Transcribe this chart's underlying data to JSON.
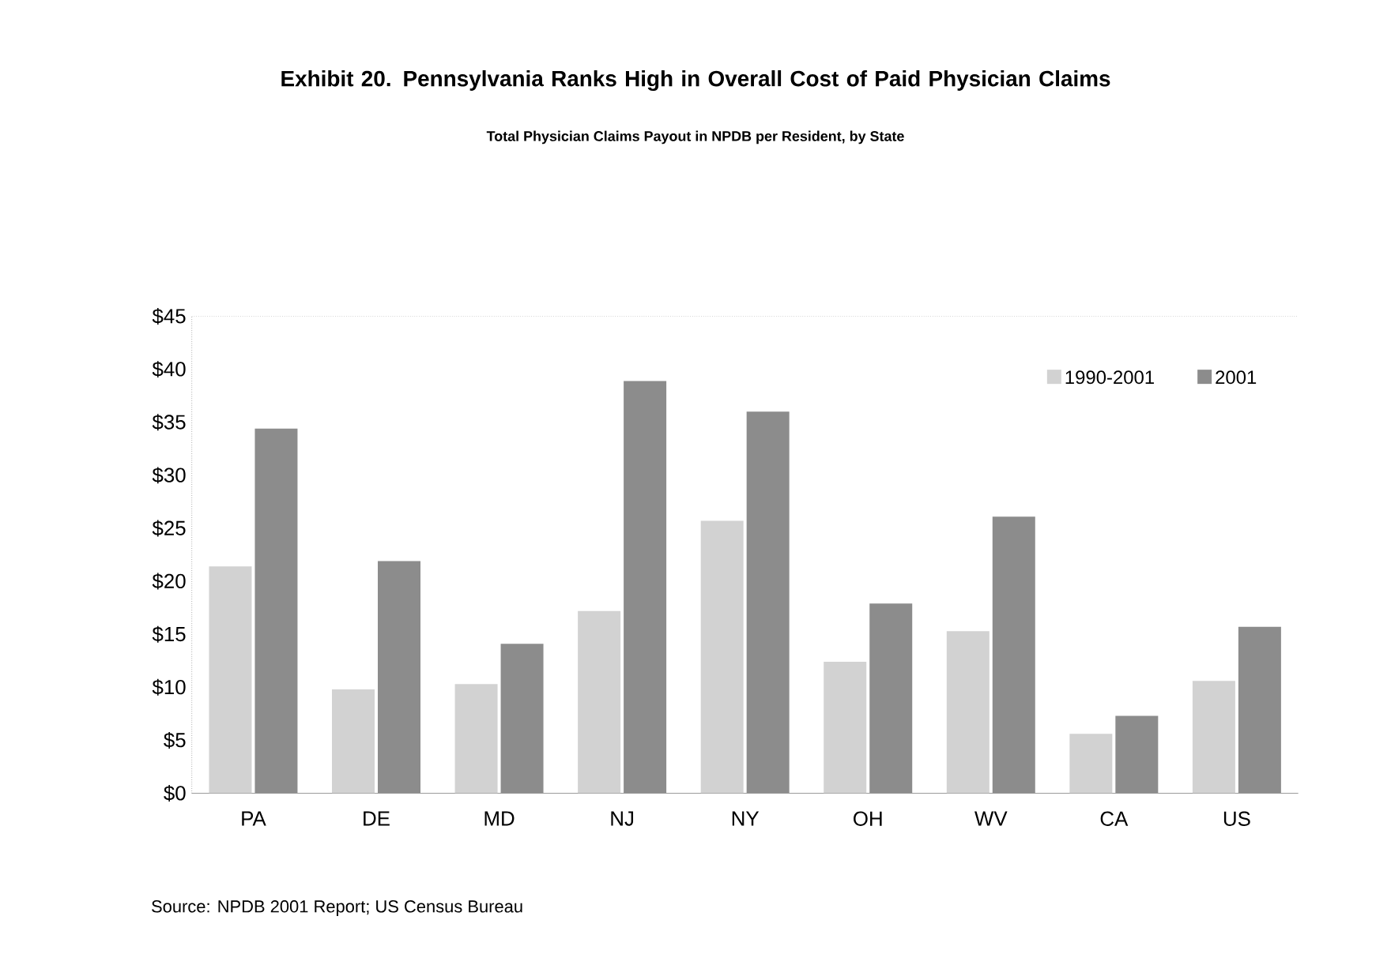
{
  "chart_data": {
    "type": "bar",
    "title": "Exhibit 20. Pennsylvania Ranks High in Overall Cost of Paid Physician Claims",
    "subtitle": "Total Physician Claims Payout in NPDB per Resident, by State",
    "categories": [
      "PA",
      "DE",
      "MD",
      "NJ",
      "NY",
      "OH",
      "WV",
      "CA",
      "US"
    ],
    "series": [
      {
        "name": "1990-2001",
        "color": "#d2d2d2",
        "values": [
          21.4,
          9.8,
          10.3,
          17.2,
          25.7,
          12.4,
          15.3,
          5.6,
          10.6
        ]
      },
      {
        "name": "2001",
        "color": "#8c8c8c",
        "values": [
          34.4,
          21.9,
          14.1,
          38.9,
          36.0,
          17.9,
          26.1,
          7.3,
          15.7
        ]
      }
    ],
    "ylim": [
      0,
      45
    ],
    "yticks": [
      {
        "value": 0,
        "label": "$0"
      },
      {
        "value": 5,
        "label": "$5"
      },
      {
        "value": 10,
        "label": "$10"
      },
      {
        "value": 15,
        "label": "$15"
      },
      {
        "value": 20,
        "label": "$20"
      },
      {
        "value": 25,
        "label": "$25"
      },
      {
        "value": 30,
        "label": "$30"
      },
      {
        "value": 35,
        "label": "$35"
      },
      {
        "value": 40,
        "label": "$40"
      },
      {
        "value": 45,
        "label": "$45"
      }
    ],
    "grid": false,
    "legend": "top right",
    "annotations": [
      "Source: NPDB 2001 Report; US Census Bureau"
    ]
  }
}
